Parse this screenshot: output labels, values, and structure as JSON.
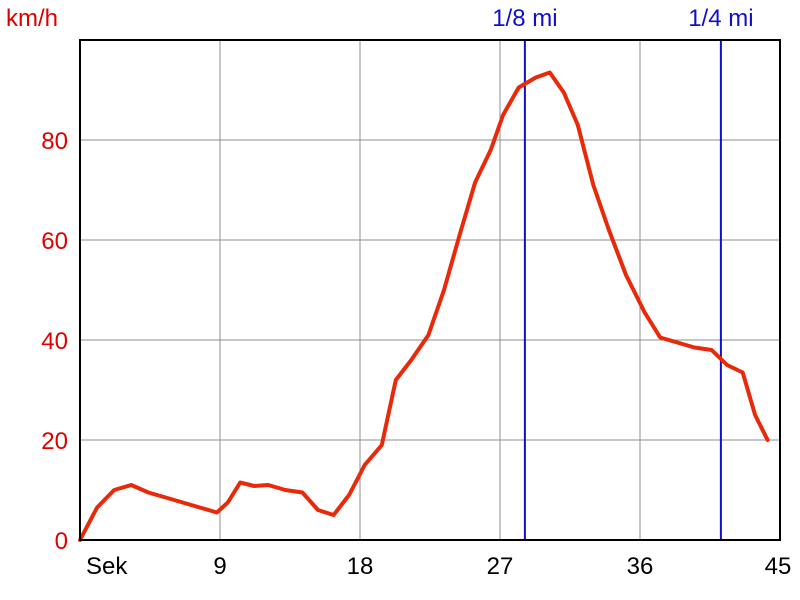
{
  "chart_data": {
    "type": "line",
    "ylabel": "km/h",
    "xlabel": "Sek",
    "xlim": [
      0,
      45
    ],
    "ylim": [
      0,
      100
    ],
    "x_ticks": [
      9,
      18,
      27,
      36,
      45
    ],
    "y_ticks": [
      0,
      20,
      40,
      60,
      80
    ],
    "grid": true,
    "series": [
      {
        "color": "#e82a0a",
        "x": [
          0,
          1.1,
          2.2,
          3.3,
          4.4,
          5.5,
          6.6,
          7.7,
          8.8,
          9.5,
          10.3,
          11.2,
          12.1,
          13.2,
          14.3,
          15.3,
          16.3,
          17.3,
          18.3,
          19.4,
          20.3,
          21.3,
          22.4,
          23.4,
          24.4,
          25.4,
          26.4,
          27.2,
          28.2,
          29.3,
          30.2,
          31.1,
          32.0,
          33.0,
          34.0,
          35.1,
          36.3,
          37.3,
          38.4,
          39.5,
          40.6,
          41.6,
          42.6,
          43.4,
          44.2
        ],
        "y": [
          0,
          6.5,
          10,
          11,
          9.5,
          8.5,
          7.5,
          6.5,
          5.5,
          7.5,
          11.5,
          10.8,
          11,
          10,
          9.5,
          6,
          5,
          9,
          15,
          19,
          32,
          36,
          41,
          50,
          61,
          71.5,
          78,
          85,
          90.5,
          92.5,
          93.5,
          89.5,
          83,
          71,
          62,
          53,
          45.5,
          40.5,
          39.5,
          38.5,
          38,
          35,
          33.5,
          25,
          20
        ]
      }
    ],
    "markers": [
      {
        "label": "1/8 mi",
        "x": 28.6,
        "color": "#1010cc"
      },
      {
        "label": "1/4 mi",
        "x": 41.2,
        "color": "#1010cc"
      }
    ]
  }
}
